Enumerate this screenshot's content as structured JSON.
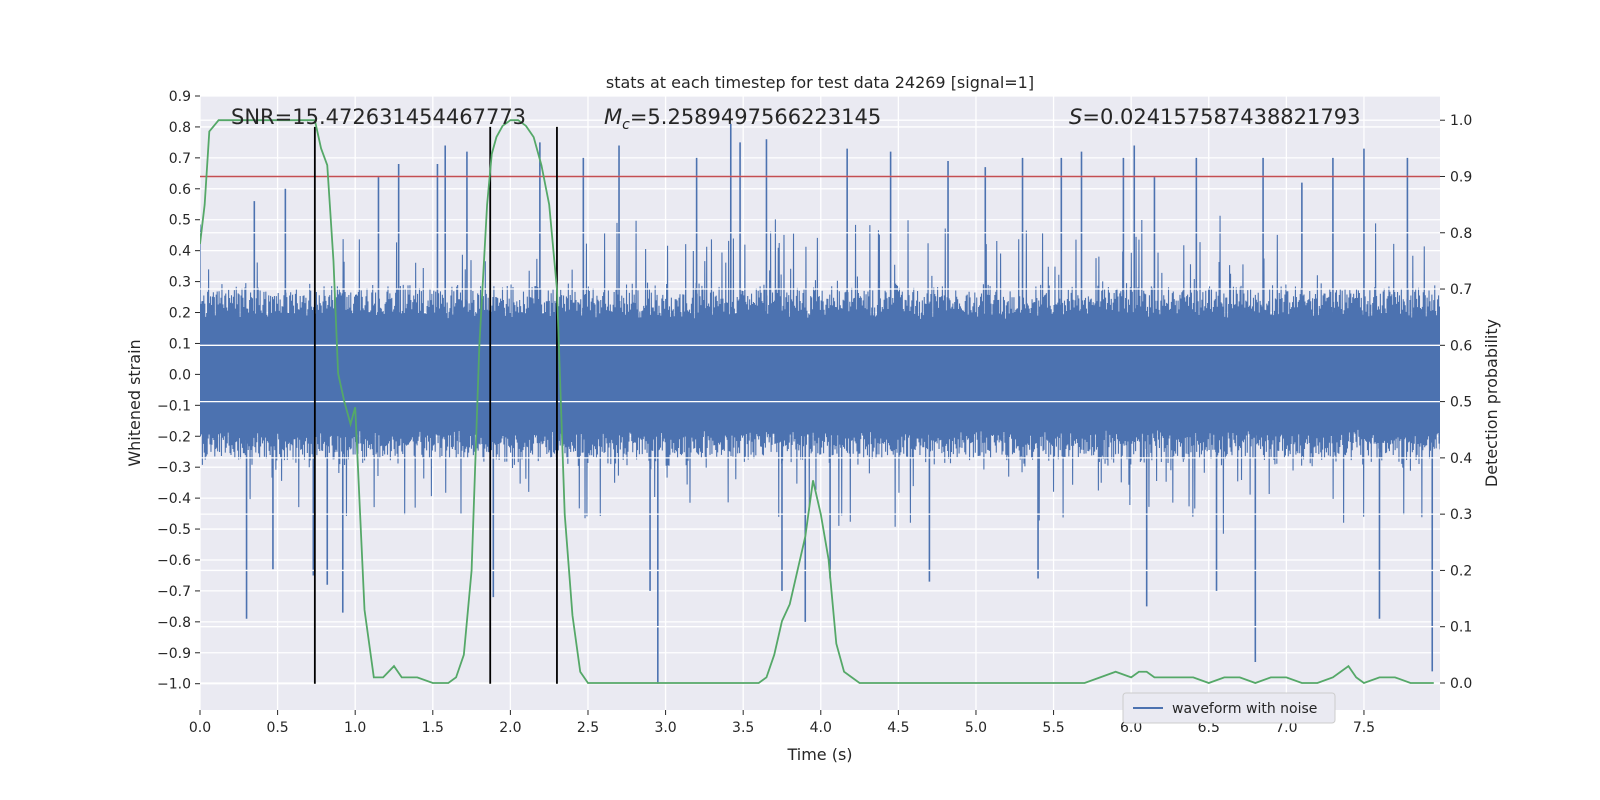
{
  "chart_data": {
    "type": "line",
    "title": "stats at each timestep for test data 24269 [signal=1]",
    "xlabel": "Time (s)",
    "ylabel": "Whitened strain",
    "y2label": "Detection probability",
    "xlim": [
      0.0,
      7.99
    ],
    "ylim": [
      -1.085,
      0.9
    ],
    "y2lim": [
      -0.048,
      1.043
    ],
    "xticks": [
      "0.0",
      "0.5",
      "1.0",
      "1.5",
      "2.0",
      "2.5",
      "3.0",
      "3.5",
      "4.0",
      "4.5",
      "5.0",
      "5.5",
      "6.0",
      "6.5",
      "7.0",
      "7.5"
    ],
    "yticks": [
      "0.9",
      "0.8",
      "0.7",
      "0.6",
      "0.5",
      "0.4",
      "0.3",
      "0.2",
      "0.1",
      "0.0",
      "−0.1",
      "−0.2",
      "−0.3",
      "−0.4",
      "−0.5",
      "−0.6",
      "−0.7",
      "−0.8",
      "−0.9",
      "−1.0"
    ],
    "y2ticks": [
      "1.0",
      "0.9",
      "0.8",
      "0.7",
      "0.6",
      "0.5",
      "0.4",
      "0.3",
      "0.2",
      "0.1",
      "0.0"
    ],
    "grid": true,
    "legend_position": "lower-right",
    "annotations": {
      "snr": "SNR=15.472631454467773",
      "mc_symbol": "M",
      "mc_sub": "c",
      "mc_value": "=5.2589497566223145",
      "s_symbol": "S",
      "s_value": "=0.024157587438821793"
    },
    "threshold": {
      "axis": "right",
      "y": 0.9,
      "color": "#c44e52"
    },
    "vlines": [
      {
        "x": 0.74,
        "y_from": -1.0,
        "y_to": 0.8
      },
      {
        "x": 1.87,
        "y_from": -1.0,
        "y_to": 0.8
      },
      {
        "x": 2.3,
        "y_from": -1.0,
        "y_to": 0.8
      }
    ],
    "series": [
      {
        "name": "waveform with noise",
        "axis": "left",
        "color": "#4c72b0",
        "style": "dense noise trace",
        "band_low": -0.3,
        "band_high": 0.3,
        "spikes": [
          {
            "x": 0.3,
            "y": -0.79
          },
          {
            "x": 0.35,
            "y": 0.56
          },
          {
            "x": 0.47,
            "y": -0.63
          },
          {
            "x": 0.55,
            "y": 0.6
          },
          {
            "x": 0.73,
            "y": -0.65
          },
          {
            "x": 0.82,
            "y": -0.68
          },
          {
            "x": 0.92,
            "y": -0.77
          },
          {
            "x": 1.15,
            "y": 0.64
          },
          {
            "x": 1.28,
            "y": 0.68
          },
          {
            "x": 1.53,
            "y": 0.68
          },
          {
            "x": 1.58,
            "y": 0.74
          },
          {
            "x": 1.72,
            "y": 0.72
          },
          {
            "x": 1.89,
            "y": -0.72
          },
          {
            "x": 2.19,
            "y": 0.75
          },
          {
            "x": 2.47,
            "y": 0.7
          },
          {
            "x": 2.7,
            "y": 0.74
          },
          {
            "x": 2.9,
            "y": -0.7
          },
          {
            "x": 2.95,
            "y": -1.0
          },
          {
            "x": 3.2,
            "y": 0.7
          },
          {
            "x": 3.42,
            "y": 0.81
          },
          {
            "x": 3.48,
            "y": 0.75
          },
          {
            "x": 3.65,
            "y": 0.76
          },
          {
            "x": 3.75,
            "y": -0.7
          },
          {
            "x": 3.9,
            "y": -0.8
          },
          {
            "x": 4.06,
            "y": -0.66
          },
          {
            "x": 4.17,
            "y": 0.73
          },
          {
            "x": 4.45,
            "y": 0.72
          },
          {
            "x": 4.7,
            "y": -0.67
          },
          {
            "x": 4.82,
            "y": 0.69
          },
          {
            "x": 5.06,
            "y": 0.67
          },
          {
            "x": 5.3,
            "y": 0.7
          },
          {
            "x": 5.4,
            "y": -0.66
          },
          {
            "x": 5.55,
            "y": 0.7
          },
          {
            "x": 5.68,
            "y": 0.72
          },
          {
            "x": 5.95,
            "y": 0.7
          },
          {
            "x": 6.02,
            "y": 0.74
          },
          {
            "x": 6.1,
            "y": -0.75
          },
          {
            "x": 6.15,
            "y": 0.64
          },
          {
            "x": 6.42,
            "y": 0.7
          },
          {
            "x": 6.55,
            "y": -0.7
          },
          {
            "x": 6.8,
            "y": -0.93
          },
          {
            "x": 6.85,
            "y": 0.7
          },
          {
            "x": 7.1,
            "y": 0.62
          },
          {
            "x": 7.3,
            "y": 0.7
          },
          {
            "x": 7.5,
            "y": 0.73
          },
          {
            "x": 7.6,
            "y": -0.79
          },
          {
            "x": 7.78,
            "y": 0.7
          },
          {
            "x": 7.94,
            "y": -0.96
          }
        ]
      },
      {
        "name": "",
        "axis": "right",
        "color": "#55a868",
        "style": "line",
        "x": [
          0.0,
          0.03,
          0.06,
          0.12,
          0.2,
          0.3,
          0.4,
          0.5,
          0.6,
          0.7,
          0.74,
          0.78,
          0.82,
          0.86,
          0.89,
          0.93,
          0.97,
          1.0,
          1.06,
          1.12,
          1.18,
          1.25,
          1.3,
          1.4,
          1.5,
          1.6,
          1.65,
          1.7,
          1.75,
          1.8,
          1.85,
          1.88,
          1.91,
          1.95,
          2.0,
          2.05,
          2.1,
          2.15,
          2.2,
          2.25,
          2.3,
          2.35,
          2.4,
          2.45,
          2.5,
          2.55,
          2.62,
          2.7,
          2.8,
          3.0,
          3.2,
          3.4,
          3.6,
          3.65,
          3.7,
          3.75,
          3.8,
          3.85,
          3.9,
          3.95,
          4.0,
          4.05,
          4.1,
          4.15,
          4.2,
          4.25,
          4.3,
          4.5,
          5.0,
          5.5,
          5.7,
          5.8,
          5.9,
          6.0,
          6.05,
          6.1,
          6.15,
          6.2,
          6.3,
          6.4,
          6.5,
          6.6,
          6.7,
          6.8,
          6.9,
          7.0,
          7.1,
          7.2,
          7.3,
          7.35,
          7.4,
          7.45,
          7.5,
          7.6,
          7.7,
          7.8,
          7.95
        ],
        "values": [
          0.78,
          0.85,
          0.98,
          1.0,
          1.0,
          1.0,
          1.0,
          1.0,
          1.0,
          1.0,
          1.0,
          0.95,
          0.92,
          0.75,
          0.55,
          0.5,
          0.46,
          0.49,
          0.13,
          0.01,
          0.01,
          0.03,
          0.01,
          0.01,
          0.0,
          0.0,
          0.01,
          0.05,
          0.2,
          0.6,
          0.85,
          0.94,
          0.97,
          0.99,
          1.0,
          1.0,
          0.99,
          0.97,
          0.92,
          0.85,
          0.7,
          0.3,
          0.12,
          0.02,
          0.0,
          0.0,
          0.0,
          0.0,
          0.0,
          0.0,
          0.0,
          0.0,
          0.0,
          0.01,
          0.05,
          0.11,
          0.14,
          0.2,
          0.26,
          0.36,
          0.3,
          0.22,
          0.07,
          0.02,
          0.01,
          0.0,
          0.0,
          0.0,
          0.0,
          0.0,
          0.0,
          0.01,
          0.02,
          0.01,
          0.02,
          0.02,
          0.01,
          0.01,
          0.01,
          0.01,
          0.0,
          0.01,
          0.01,
          0.0,
          0.01,
          0.01,
          0.0,
          0.0,
          0.01,
          0.02,
          0.03,
          0.01,
          0.0,
          0.01,
          0.01,
          0.0,
          0.0
        ]
      }
    ]
  }
}
